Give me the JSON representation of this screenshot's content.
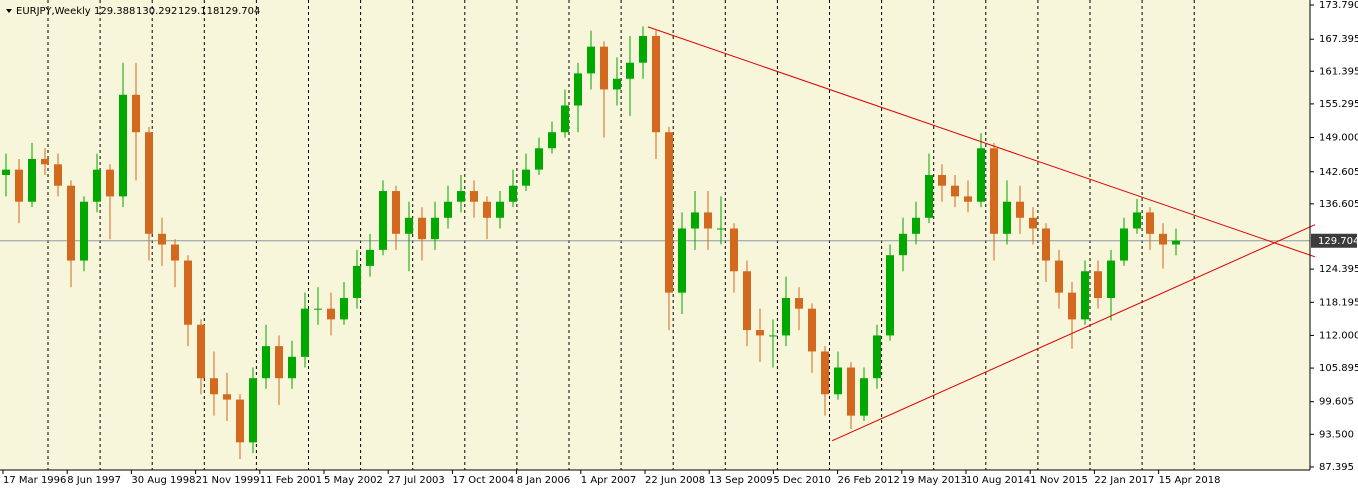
{
  "header": {
    "symbol": "EURJPY,Weekly",
    "ohlc": [
      129.388,
      130.292,
      129.118,
      129.704
    ]
  },
  "chart_data": {
    "type": "candlestick",
    "up_color": "#00a800",
    "down_color": "#d2691e",
    "background": "#f7f5da",
    "ylim": [
      87.395,
      173.79
    ],
    "yticks": [
      {
        "value": 173.79,
        "label": "173.790"
      },
      167.395,
      161.395,
      155.295,
      {
        "value": 149.0,
        "label": "149.000"
      },
      142.605,
      136.605,
      124.395,
      118.195,
      {
        "value": 112.0,
        "label": "112.000"
      },
      105.895,
      99.605,
      {
        "value": 93.5,
        "label": "93.500"
      },
      87.395
    ],
    "categories": [
      "17 Mar 1996",
      "8 Jun 1997",
      "30 Aug 1998",
      "21 Nov 1999",
      "11 Feb 2001",
      "5 May 2002",
      "27 Jul 2003",
      "17 Oct 2004",
      "8 Jan 2006",
      "1 Apr 2007",
      "22 Jun 2008",
      "13 Sep 2009",
      "5 Dec 2010",
      "26 Feb 2012",
      "19 May 2013",
      "10 Aug 2014",
      "1 Nov 2015",
      "22 Jan 2017",
      "15 Apr 2018"
    ],
    "current_price": 129.704,
    "trendlines": [
      {
        "color": "#e00000",
        "values": [
          169.7,
          126.7
        ]
      },
      {
        "color": "#e00000",
        "values": [
          92.3,
          132.7
        ]
      }
    ],
    "ohlc": [
      [
        142,
        146,
        138,
        143
      ],
      [
        143,
        145,
        133,
        137
      ],
      [
        137,
        148,
        136,
        145
      ],
      [
        145,
        147,
        142,
        144
      ],
      [
        144,
        146,
        138,
        140
      ],
      [
        140,
        141,
        121,
        126
      ],
      [
        126,
        138,
        124,
        137
      ],
      [
        137,
        146,
        135,
        143
      ],
      [
        143,
        144,
        130,
        138
      ],
      [
        138,
        163,
        136,
        157
      ],
      [
        157,
        163,
        141,
        150
      ],
      [
        150,
        151,
        126,
        131
      ],
      [
        131,
        134,
        125,
        129
      ],
      [
        129,
        130,
        121,
        126
      ],
      [
        126,
        127,
        110,
        114
      ],
      [
        114,
        115,
        101,
        104
      ],
      [
        104,
        109,
        97,
        101
      ],
      [
        101,
        105,
        96,
        100
      ],
      [
        100,
        101,
        88.9,
        92
      ],
      [
        92,
        106,
        90,
        104
      ],
      [
        104,
        114,
        102,
        110
      ],
      [
        110,
        112,
        99,
        104
      ],
      [
        104,
        111,
        102,
        108
      ],
      [
        108,
        120,
        106,
        117
      ],
      [
        117,
        121,
        114,
        117
      ],
      [
        117,
        120,
        112,
        115
      ],
      [
        115,
        122,
        114,
        119
      ],
      [
        119,
        128,
        117,
        125
      ],
      [
        125,
        131,
        123,
        128
      ],
      [
        128,
        141,
        127,
        139
      ],
      [
        139,
        140,
        128,
        131
      ],
      [
        131,
        137,
        124,
        134
      ],
      [
        134,
        136,
        126,
        130
      ],
      [
        130,
        137,
        128,
        134
      ],
      [
        134,
        140,
        132,
        137
      ],
      [
        137,
        142,
        135,
        139
      ],
      [
        139,
        141,
        134,
        137
      ],
      [
        137,
        138,
        130,
        134
      ],
      [
        134,
        139,
        132,
        137
      ],
      [
        137,
        143,
        136,
        140
      ],
      [
        140,
        146,
        139,
        143
      ],
      [
        143,
        149,
        142,
        147
      ],
      [
        147,
        152,
        146,
        150
      ],
      [
        150,
        158,
        149,
        155
      ],
      [
        155,
        163,
        150,
        161
      ],
      [
        161,
        169,
        158,
        166
      ],
      [
        166,
        167,
        149,
        158
      ],
      [
        158,
        164,
        155,
        160
      ],
      [
        160,
        168,
        153,
        163
      ],
      [
        163,
        169.8,
        160,
        168
      ],
      [
        168,
        169,
        145,
        150
      ],
      [
        150,
        151,
        113,
        120
      ],
      [
        120,
        135,
        116,
        132
      ],
      [
        132,
        139,
        128,
        135
      ],
      [
        135,
        139,
        128,
        132
      ],
      [
        132,
        138,
        129,
        132
      ],
      [
        132,
        133,
        120,
        124
      ],
      [
        124,
        126,
        110,
        113
      ],
      [
        113,
        117,
        107,
        112
      ],
      [
        112,
        115,
        106,
        112
      ],
      [
        112,
        123,
        110,
        119
      ],
      [
        119,
        121,
        113,
        117
      ],
      [
        117,
        118,
        105,
        109
      ],
      [
        109,
        110,
        97,
        101
      ],
      [
        101,
        109,
        100,
        106
      ],
      [
        106,
        107,
        94.5,
        97
      ],
      [
        97,
        106,
        96,
        104
      ],
      [
        104,
        114,
        102,
        112
      ],
      [
        112,
        129,
        111,
        127
      ],
      [
        127,
        134,
        124,
        131
      ],
      [
        131,
        137,
        129,
        134
      ],
      [
        134,
        146,
        133,
        142
      ],
      [
        142,
        144,
        137,
        140
      ],
      [
        140,
        142,
        136,
        138
      ],
      [
        138,
        141,
        135,
        137
      ],
      [
        137,
        149.8,
        136,
        147
      ],
      [
        147,
        148,
        126,
        131
      ],
      [
        131,
        141,
        129,
        137
      ],
      [
        137,
        140,
        131,
        134
      ],
      [
        134,
        136,
        129,
        132
      ],
      [
        132,
        133,
        122,
        126
      ],
      [
        126,
        128,
        117,
        120
      ],
      [
        120,
        122,
        109.5,
        115
      ],
      [
        115,
        126,
        114,
        124
      ],
      [
        124,
        126,
        117,
        119
      ],
      [
        119,
        128,
        114.8,
        126
      ],
      [
        126,
        134,
        125,
        132
      ],
      [
        132,
        137.5,
        131,
        135
      ],
      [
        135,
        136,
        128,
        131
      ],
      [
        131,
        133,
        124.5,
        129
      ],
      [
        129,
        132,
        127,
        129.704
      ]
    ]
  }
}
